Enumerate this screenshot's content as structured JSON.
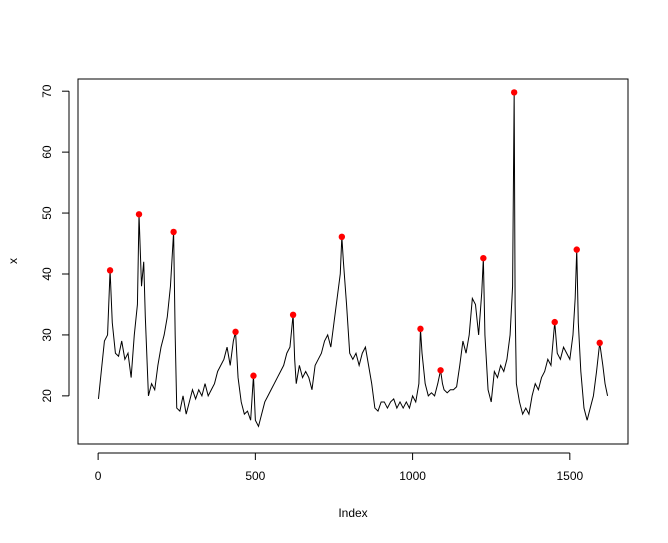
{
  "chart_data": {
    "type": "line",
    "xlabel": "Index",
    "ylabel": "x",
    "xlim": [
      -64,
      1685
    ],
    "ylim": [
      12.1,
      72.0
    ],
    "xticks": [
      0,
      500,
      1000,
      1500
    ],
    "yticks": [
      20,
      30,
      40,
      50,
      60,
      70
    ],
    "color": "#000000",
    "x": [
      1,
      10,
      20,
      30,
      38,
      45,
      55,
      65,
      75,
      85,
      95,
      105,
      115,
      125,
      130,
      138,
      145,
      150,
      160,
      170,
      180,
      190,
      200,
      210,
      220,
      230,
      240,
      245,
      250,
      260,
      270,
      280,
      290,
      300,
      310,
      320,
      330,
      340,
      350,
      360,
      370,
      380,
      390,
      400,
      410,
      420,
      430,
      437,
      445,
      455,
      465,
      475,
      485,
      494,
      500,
      510,
      520,
      530,
      540,
      550,
      560,
      570,
      580,
      590,
      600,
      610,
      620,
      625,
      630,
      640,
      650,
      660,
      670,
      680,
      690,
      700,
      710,
      720,
      730,
      740,
      750,
      760,
      770,
      775,
      780,
      790,
      800,
      810,
      820,
      830,
      840,
      850,
      860,
      870,
      880,
      890,
      900,
      910,
      920,
      930,
      940,
      950,
      960,
      970,
      980,
      990,
      1000,
      1010,
      1020,
      1025,
      1030,
      1040,
      1050,
      1060,
      1070,
      1080,
      1089,
      1095,
      1100,
      1110,
      1120,
      1130,
      1140,
      1150,
      1160,
      1170,
      1180,
      1190,
      1200,
      1210,
      1220,
      1225,
      1230,
      1240,
      1250,
      1260,
      1270,
      1280,
      1290,
      1300,
      1310,
      1318,
      1323,
      1326,
      1330,
      1340,
      1350,
      1360,
      1370,
      1380,
      1390,
      1400,
      1410,
      1420,
      1430,
      1440,
      1452,
      1460,
      1470,
      1480,
      1490,
      1500,
      1510,
      1517,
      1522,
      1527,
      1535,
      1545,
      1555,
      1565,
      1575,
      1585,
      1595,
      1605,
      1612,
      1620
    ],
    "values": [
      19.5,
      24,
      29,
      30,
      40.6,
      32,
      27,
      26.5,
      29,
      26,
      27,
      23,
      30,
      35,
      49.8,
      38,
      42,
      33,
      20,
      22,
      21,
      25,
      28,
      30,
      33,
      38,
      46.9,
      30,
      18,
      17.5,
      20,
      17,
      19,
      21,
      19.5,
      21,
      20,
      22,
      20,
      21,
      22,
      24,
      25,
      26,
      28,
      25,
      29,
      30.5,
      23,
      19,
      17,
      17.5,
      16,
      23.3,
      16,
      15,
      17,
      19,
      20,
      21,
      22,
      23,
      24,
      25,
      27,
      28,
      33.3,
      26,
      22,
      25,
      23,
      24,
      23,
      21,
      25,
      26,
      27,
      29,
      30,
      28,
      32,
      36,
      40,
      46.1,
      42,
      35,
      27,
      26,
      27,
      25,
      27,
      28,
      25,
      22,
      18,
      17.5,
      19,
      19,
      18,
      19,
      19.5,
      18,
      19,
      18,
      19,
      18,
      20,
      19,
      22,
      31,
      27,
      22,
      20,
      20.5,
      20,
      22,
      24.2,
      22,
      21,
      20.5,
      21,
      21,
      21.5,
      25,
      29,
      27,
      30,
      36,
      35,
      30,
      37,
      42.6,
      30,
      21,
      19,
      24,
      23,
      25,
      24,
      26,
      30,
      38,
      69.8,
      35,
      22,
      19,
      17,
      18,
      17,
      20,
      22,
      21,
      23,
      24,
      26,
      25,
      32.1,
      27,
      26,
      28,
      27,
      26,
      30,
      36,
      44,
      32,
      24,
      18,
      16,
      18,
      20,
      24,
      28.7,
      25,
      22,
      20
    ],
    "points": {
      "color": "#ff0000",
      "x": [
        38,
        130,
        240,
        437,
        494,
        620,
        775,
        1025,
        1089,
        1225,
        1323,
        1452,
        1522,
        1595
      ],
      "values": [
        40.6,
        49.8,
        46.9,
        30.5,
        23.3,
        33.3,
        46.1,
        31.0,
        24.2,
        42.6,
        69.8,
        32.1,
        44.0,
        28.7
      ]
    }
  }
}
